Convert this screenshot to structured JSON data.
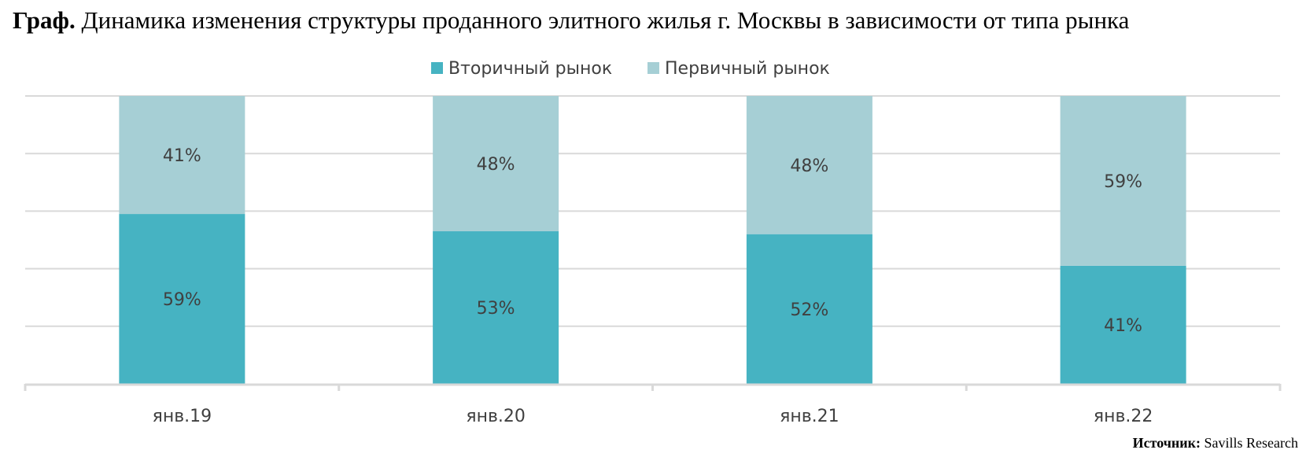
{
  "title": {
    "prefix": "Граф.",
    "text": "Динамика изменения структуры проданного элитного жилья г. Москвы в зависимости от типа рынка"
  },
  "source": {
    "label": "Источник:",
    "value": "Savills Research"
  },
  "colors": {
    "secondary": "#46b3c2",
    "primary": "#a6cfd5",
    "grid": "#d9d9d9",
    "axis": "#d9d9d9",
    "label_text": "#404040"
  },
  "chart_data": {
    "type": "bar",
    "stacked": true,
    "categories": [
      "янв.19",
      "янв.20",
      "янв.21",
      "янв.22"
    ],
    "series": [
      {
        "name": "Вторичный рынок",
        "values": [
          59,
          53,
          52,
          41
        ],
        "labels": [
          "59%",
          "53%",
          "52%",
          "41%"
        ]
      },
      {
        "name": "Первичный рынок",
        "values": [
          41,
          48,
          48,
          59
        ],
        "labels": [
          "41%",
          "48%",
          "48%",
          "59%"
        ]
      }
    ],
    "ylim": [
      0,
      100
    ],
    "grid": true,
    "legend": "top-center"
  }
}
